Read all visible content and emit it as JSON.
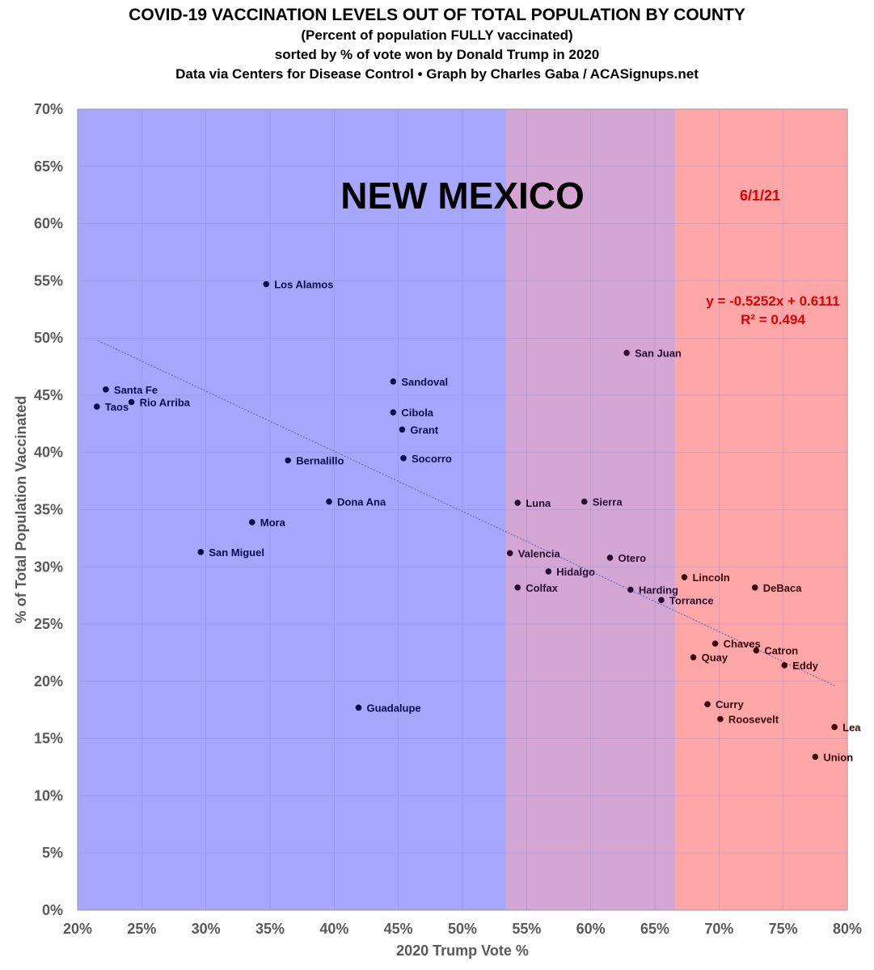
{
  "chart_data": {
    "type": "scatter",
    "title": "COVID-19 VACCINATION LEVELS OUT OF TOTAL POPULATION BY COUNTY",
    "subtitles": [
      "(Percent of population FULLY vaccinated)",
      "sorted by % of vote won by Donald Trump in 2020",
      "Data via Centers for Disease Control • Graph by Charles Gaba / ACASignups.net"
    ],
    "state_label": "NEW MEXICO",
    "date_label": "6/1/21",
    "xlabel": "2020 Trump Vote %",
    "ylabel": "% of Total Population Vaccinated",
    "xlim": [
      20,
      80
    ],
    "ylim": [
      0,
      70
    ],
    "xticks": [
      "20%",
      "25%",
      "30%",
      "35%",
      "40%",
      "45%",
      "50%",
      "55%",
      "60%",
      "65%",
      "70%",
      "75%",
      "80%"
    ],
    "yticks": [
      "0%",
      "5%",
      "10%",
      "15%",
      "20%",
      "25%",
      "30%",
      "35%",
      "40%",
      "45%",
      "50%",
      "55%",
      "60%",
      "65%",
      "70%"
    ],
    "grid": true,
    "regions": [
      {
        "from": 20,
        "to": 53.4,
        "color": "#a6a6fb"
      },
      {
        "from": 53.4,
        "to": 66.6,
        "color": "#d3a6d4"
      },
      {
        "from": 66.6,
        "to": 80,
        "color": "#fea7a8"
      }
    ],
    "trendline": {
      "equation": "y = -0.5252x + 0.6111",
      "r2": "R² = 0.494",
      "slope": -0.5252,
      "intercept": 0.6111,
      "x_range": [
        21.6,
        79
      ]
    },
    "points": [
      {
        "name": "Los Alamos",
        "x": 34.7,
        "y": 54.7
      },
      {
        "name": "Santa Fe",
        "x": 22.2,
        "y": 45.5
      },
      {
        "name": "Rio Arriba",
        "x": 24.2,
        "y": 44.4
      },
      {
        "name": "Taos",
        "x": 21.5,
        "y": 44.0
      },
      {
        "name": "Sandoval",
        "x": 44.6,
        "y": 46.2
      },
      {
        "name": "Cibola",
        "x": 44.6,
        "y": 43.5
      },
      {
        "name": "Grant",
        "x": 45.3,
        "y": 42.0
      },
      {
        "name": "Socorro",
        "x": 45.4,
        "y": 39.5
      },
      {
        "name": "Bernalillo",
        "x": 36.4,
        "y": 39.3
      },
      {
        "name": "Dona Ana",
        "x": 39.6,
        "y": 35.7
      },
      {
        "name": "Mora",
        "x": 33.6,
        "y": 33.9
      },
      {
        "name": "San Miguel",
        "x": 29.6,
        "y": 31.3
      },
      {
        "name": "Guadalupe",
        "x": 41.9,
        "y": 17.7
      },
      {
        "name": "San Juan",
        "x": 62.8,
        "y": 48.7
      },
      {
        "name": "Luna",
        "x": 54.3,
        "y": 35.6
      },
      {
        "name": "Sierra",
        "x": 59.5,
        "y": 35.7
      },
      {
        "name": "Valencia",
        "x": 53.7,
        "y": 31.2
      },
      {
        "name": "Otero",
        "x": 61.5,
        "y": 30.8
      },
      {
        "name": "Hidalgo",
        "x": 56.7,
        "y": 29.6
      },
      {
        "name": "Colfax",
        "x": 54.3,
        "y": 28.2
      },
      {
        "name": "Harding",
        "x": 63.1,
        "y": 28.0
      },
      {
        "name": "Torrance",
        "x": 65.5,
        "y": 27.1
      },
      {
        "name": "Lincoln",
        "x": 67.3,
        "y": 29.1
      },
      {
        "name": "DeBaca",
        "x": 72.8,
        "y": 28.2
      },
      {
        "name": "Chaves",
        "x": 69.7,
        "y": 23.3
      },
      {
        "name": "Catron",
        "x": 72.9,
        "y": 22.7
      },
      {
        "name": "Quay",
        "x": 68.0,
        "y": 22.1
      },
      {
        "name": "Eddy",
        "x": 75.1,
        "y": 21.4
      },
      {
        "name": "Curry",
        "x": 69.1,
        "y": 18.0
      },
      {
        "name": "Roosevelt",
        "x": 70.1,
        "y": 16.7
      },
      {
        "name": "Lea",
        "x": 79.0,
        "y": 16.0
      },
      {
        "name": "Union",
        "x": 77.5,
        "y": 13.4
      }
    ]
  }
}
